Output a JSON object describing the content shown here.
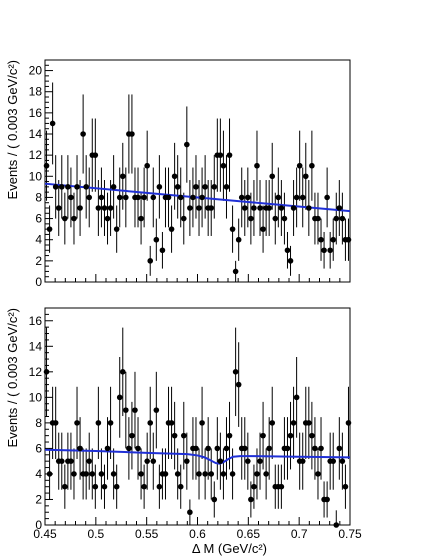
{
  "chart_data": [
    {
      "type": "scatter",
      "panel": "top",
      "ylabel": "Events / ( 0.003 GeV/c²)",
      "xlabel": "",
      "xlim": [
        0.45,
        0.75
      ],
      "ylim": [
        0,
        21
      ],
      "xticks": [
        "0.45",
        "0.5",
        "0.55",
        "0.6",
        "0.65",
        "0.7",
        "0.75"
      ],
      "yticks": [
        "0",
        "2",
        "4",
        "6",
        "8",
        "10",
        "12",
        "14",
        "16",
        "18",
        "20"
      ],
      "grid": false,
      "legend": "none",
      "x": [
        0.4515,
        0.4545,
        0.4575,
        0.4605,
        0.4635,
        0.4665,
        0.4695,
        0.4725,
        0.4755,
        0.4785,
        0.4815,
        0.4845,
        0.4875,
        0.4905,
        0.4935,
        0.4965,
        0.4995,
        0.5025,
        0.5055,
        0.5085,
        0.5115,
        0.5145,
        0.5175,
        0.5205,
        0.5235,
        0.5265,
        0.5295,
        0.5325,
        0.5355,
        0.5385,
        0.5415,
        0.5445,
        0.5475,
        0.5505,
        0.5535,
        0.5565,
        0.5595,
        0.5625,
        0.5655,
        0.5685,
        0.5715,
        0.5745,
        0.5775,
        0.5805,
        0.5835,
        0.5865,
        0.5895,
        0.5925,
        0.5955,
        0.5985,
        0.6015,
        0.6045,
        0.6075,
        0.6105,
        0.6135,
        0.6165,
        0.6195,
        0.6225,
        0.6255,
        0.6285,
        0.6315,
        0.6345,
        0.6375,
        0.6405,
        0.6435,
        0.6465,
        0.6495,
        0.6525,
        0.6555,
        0.6585,
        0.6615,
        0.6645,
        0.6675,
        0.6705,
        0.6735,
        0.6765,
        0.6795,
        0.6825,
        0.6855,
        0.6885,
        0.6915,
        0.6945,
        0.6975,
        0.7005,
        0.7035,
        0.7065,
        0.7095,
        0.7125,
        0.7155,
        0.7185,
        0.7215,
        0.7245,
        0.7275,
        0.7305,
        0.7335,
        0.7365,
        0.7395,
        0.7425,
        0.7455,
        0.7485
      ],
      "y": [
        11,
        5,
        15,
        9,
        7,
        9,
        6,
        9,
        8,
        6,
        9,
        7,
        14,
        9,
        8,
        12,
        12,
        7,
        8,
        7,
        6,
        7,
        9,
        5,
        8,
        10,
        8,
        14,
        14,
        8,
        8,
        6,
        8,
        11,
        2,
        8,
        4,
        9,
        3,
        8,
        8,
        5,
        10,
        9,
        8,
        6,
        13,
        7,
        8,
        9,
        7,
        8,
        9,
        7,
        7,
        9,
        12,
        12,
        11,
        9,
        12,
        5,
        1,
        4,
        8,
        7,
        8,
        6,
        7,
        11,
        7,
        5,
        7,
        7,
        10,
        6,
        8,
        7,
        6,
        3,
        2,
        7,
        8,
        11,
        8,
        10,
        7,
        11,
        6,
        6,
        4,
        3,
        8,
        3,
        4,
        6,
        7,
        6,
        4,
        4
      ],
      "fit": {
        "x": [
          0.45,
          0.75
        ],
        "y": [
          9.3,
          6.7
        ]
      }
    },
    {
      "type": "scatter",
      "panel": "bottom",
      "ylabel": "Events / ( 0.003 GeV/c²)",
      "xlabel": "Δ M (GeV/c²)",
      "xlim": [
        0.45,
        0.75
      ],
      "ylim": [
        0,
        17
      ],
      "xticks": [
        "0.45",
        "0.5",
        "0.55",
        "0.6",
        "0.65",
        "0.7",
        "0.75"
      ],
      "yticks": [
        "0",
        "2",
        "4",
        "6",
        "8",
        "10",
        "12",
        "14",
        "16"
      ],
      "grid": false,
      "legend": "none",
      "x": [
        0.4515,
        0.4545,
        0.4575,
        0.4605,
        0.4635,
        0.4665,
        0.4695,
        0.4725,
        0.4755,
        0.4785,
        0.4815,
        0.4845,
        0.4875,
        0.4905,
        0.4935,
        0.4965,
        0.4995,
        0.5025,
        0.5055,
        0.5085,
        0.5115,
        0.5145,
        0.5175,
        0.5205,
        0.5235,
        0.5265,
        0.5295,
        0.5325,
        0.5355,
        0.5385,
        0.5415,
        0.5445,
        0.5475,
        0.5505,
        0.5535,
        0.5565,
        0.5595,
        0.5625,
        0.5655,
        0.5685,
        0.5715,
        0.5745,
        0.5775,
        0.5805,
        0.5835,
        0.5865,
        0.5895,
        0.5925,
        0.5955,
        0.5985,
        0.6015,
        0.6045,
        0.6075,
        0.6105,
        0.6135,
        0.6165,
        0.6195,
        0.6225,
        0.6255,
        0.6285,
        0.6315,
        0.6345,
        0.6375,
        0.6405,
        0.6435,
        0.6465,
        0.6495,
        0.6525,
        0.6555,
        0.6585,
        0.6615,
        0.6645,
        0.6675,
        0.6705,
        0.6735,
        0.6765,
        0.6795,
        0.6825,
        0.6855,
        0.6885,
        0.6915,
        0.6945,
        0.6975,
        0.7005,
        0.7035,
        0.7065,
        0.7095,
        0.7125,
        0.7155,
        0.7185,
        0.7215,
        0.7245,
        0.7275,
        0.7305,
        0.7335,
        0.7365,
        0.7395,
        0.7425,
        0.7455,
        0.7485
      ],
      "y": [
        12,
        4,
        8,
        8,
        5,
        5,
        3,
        5,
        5,
        4,
        8,
        6,
        4,
        4,
        5,
        4,
        3,
        8,
        4,
        3,
        6,
        8,
        4,
        3,
        10,
        12,
        9,
        6,
        7,
        9,
        6,
        4,
        3,
        5,
        8,
        5,
        9,
        3,
        4,
        4,
        8,
        8,
        7,
        4,
        3,
        7,
        5,
        1,
        6,
        6,
        4,
        8,
        4,
        6,
        4,
        2,
        6,
        5,
        4,
        6,
        7,
        4,
        12,
        11,
        6,
        6,
        5,
        2,
        3,
        4,
        5,
        7,
        4,
        6,
        8,
        3,
        3,
        3,
        6,
        6,
        7,
        8,
        10,
        5,
        5,
        8,
        8,
        7,
        6,
        4,
        6,
        2,
        2,
        5,
        5,
        0,
        6,
        5,
        3,
        8
      ],
      "fit": {
        "x": [
          0.45,
          0.5,
          0.55,
          0.59,
          0.6,
          0.607,
          0.612,
          0.618,
          0.622,
          0.626,
          0.63,
          0.635,
          0.642,
          0.65,
          0.7,
          0.75
        ],
        "y": [
          5.9,
          5.8,
          5.65,
          5.55,
          5.45,
          5.3,
          5.1,
          4.85,
          4.8,
          4.95,
          5.15,
          5.35,
          5.4,
          5.4,
          5.35,
          5.3
        ]
      }
    }
  ]
}
